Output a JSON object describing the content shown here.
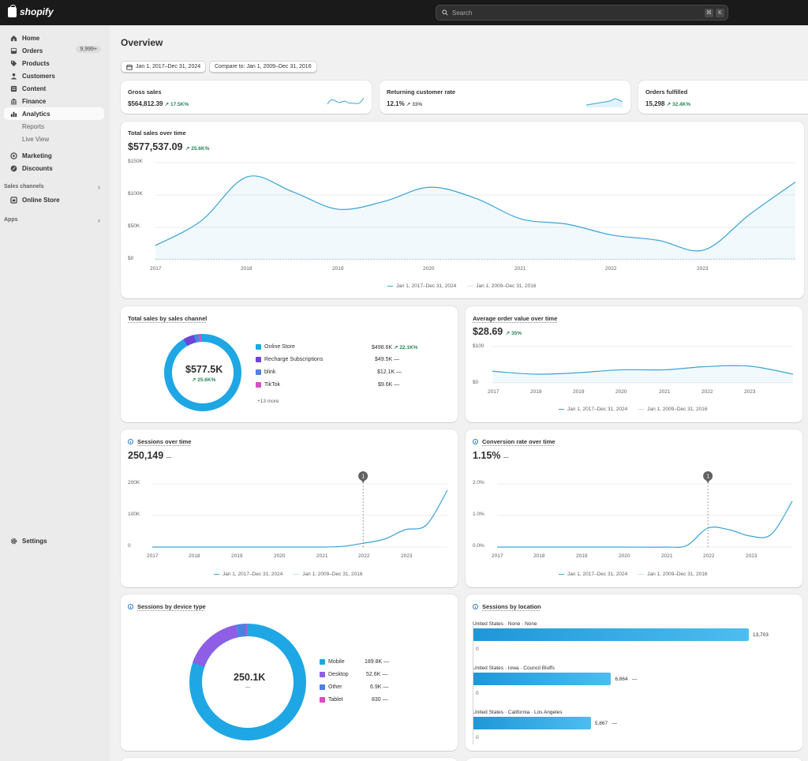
{
  "app": {
    "brand": "shopify"
  },
  "search": {
    "placeholder": "Search",
    "kbd1": "⌘",
    "kbd2": "K"
  },
  "sidebar": {
    "items": [
      {
        "label": "Home"
      },
      {
        "label": "Orders",
        "badge": "9,999+"
      },
      {
        "label": "Products"
      },
      {
        "label": "Customers"
      },
      {
        "label": "Content"
      },
      {
        "label": "Finance"
      },
      {
        "label": "Analytics"
      },
      {
        "label": "Reports"
      },
      {
        "label": "Live View"
      },
      {
        "label": "Marketing"
      },
      {
        "label": "Discounts"
      }
    ],
    "sales_channels_label": "Sales channels",
    "online_store": "Online Store",
    "apps_label": "Apps",
    "settings": "Settings"
  },
  "page": {
    "title": "Overview",
    "date_range": "Jan 1, 2017–Dec 31, 2024",
    "compare": "Compare to: Jan 1, 2009–Dec 31, 2016"
  },
  "kpis": [
    {
      "title": "Gross sales",
      "value": "$564,812.39",
      "delta": "17.5K%",
      "trend": "up"
    },
    {
      "title": "Returning customer rate",
      "value": "12.1%",
      "delta": "33%",
      "trend": "neutral"
    },
    {
      "title": "Orders fulfilled",
      "value": "15,298",
      "delta": "32.4K%",
      "trend": "up"
    }
  ],
  "legend": {
    "current": "Jan 1, 2017–Dec 31, 2024",
    "previous": "Jan 1, 2009–Dec 31, 2016"
  },
  "total_sales": {
    "title": "Total sales over time",
    "value": "$577,537.09",
    "delta": "25.6K%",
    "y_ticks": [
      "$150K",
      "$100K",
      "$50K",
      "$0"
    ],
    "x_ticks": [
      "2017",
      "2018",
      "2019",
      "2020",
      "2021",
      "2022",
      "2023"
    ]
  },
  "sales_channel": {
    "title": "Total sales by sales channel",
    "center_value": "$577.5K",
    "center_delta": "25.6K%",
    "rows": [
      {
        "name": "Online Store",
        "value": "$498.6K",
        "delta": "22.1K%",
        "color": "#1ea7e4"
      },
      {
        "name": "Recharge Subscriptions",
        "value": "$49.5K",
        "delta": "—",
        "color": "#6e44d9"
      },
      {
        "name": "blink",
        "value": "$12.1K",
        "delta": "—",
        "color": "#4f7fe0"
      },
      {
        "name": "TikTok",
        "value": "$9.6K",
        "delta": "—",
        "color": "#d94fc0"
      }
    ],
    "more": "+13 more"
  },
  "aov": {
    "title": "Average order value over time",
    "value": "$28.69",
    "delta": "35%",
    "y_ticks": [
      "$100",
      "$0"
    ],
    "x_ticks": [
      "2017",
      "2018",
      "2019",
      "2020",
      "2021",
      "2022",
      "2023"
    ]
  },
  "sessions": {
    "title": "Sessions over time",
    "value": "250,149",
    "delta": "—",
    "marker": "1",
    "y_ticks": [
      "200K",
      "100K",
      "0"
    ],
    "x_ticks": [
      "2017",
      "2018",
      "2019",
      "2020",
      "2021",
      "2022",
      "2023"
    ]
  },
  "conversion": {
    "title": "Conversion rate over time",
    "value": "1.15%",
    "delta": "—",
    "marker": "1",
    "y_ticks": [
      "2.0%",
      "1.0%",
      "0.0%"
    ],
    "x_ticks": [
      "2017",
      "2018",
      "2019",
      "2020",
      "2021",
      "2022",
      "2023"
    ]
  },
  "device": {
    "title": "Sessions by device type",
    "center_value": "250.1K",
    "center_delta": "—",
    "rows": [
      {
        "name": "Mobile",
        "value": "189.8K",
        "delta": "—",
        "color": "#1ea7e4"
      },
      {
        "name": "Desktop",
        "value": "52.6K",
        "delta": "—",
        "color": "#8f5ee6"
      },
      {
        "name": "Other",
        "value": "6.9K",
        "delta": "—",
        "color": "#4f7fe0"
      },
      {
        "name": "Tablet",
        "value": "830",
        "delta": "—",
        "color": "#d94fc0"
      }
    ]
  },
  "location": {
    "title": "Sessions by location",
    "rows": [
      {
        "label": "United States · None · None",
        "value": "13,703",
        "delta": "",
        "zero": "0"
      },
      {
        "label": "United States · Iowa · Council Bluffs",
        "value": "6,864",
        "delta": "—",
        "zero": "0"
      },
      {
        "label": "United States · California · Los Angeles",
        "value": "5,867",
        "delta": "—",
        "zero": "0"
      }
    ]
  },
  "chart_data": [
    {
      "type": "line",
      "title": "Total sales over time",
      "x": [
        2017,
        2017.5,
        2018,
        2018.5,
        2019,
        2019.5,
        2020,
        2020.5,
        2021,
        2021.5,
        2022,
        2022.5,
        2023,
        2023.5,
        2024
      ],
      "series": [
        {
          "name": "Jan 1, 2017–Dec 31, 2024",
          "values": [
            22000,
            60000,
            128000,
            105000,
            78000,
            90000,
            112000,
            95000,
            63000,
            55000,
            38000,
            30000,
            15000,
            70000,
            120000
          ]
        },
        {
          "name": "Jan 1, 2009–Dec 31, 2016",
          "values": [
            1000,
            1000,
            1000,
            1000,
            1000,
            1000,
            1000,
            1000,
            1000,
            1000,
            1000,
            1000,
            1000,
            1500,
            2000
          ]
        }
      ],
      "ylim": [
        0,
        150000
      ]
    },
    {
      "type": "line",
      "title": "Average order value over time",
      "x": [
        2017,
        2018,
        2019,
        2020,
        2021,
        2022,
        2023,
        2024
      ],
      "series": [
        {
          "name": "Jan 1, 2017–Dec 31, 2024",
          "values": [
            32,
            24,
            28,
            36,
            36,
            45,
            46,
            24
          ]
        }
      ],
      "ylim": [
        0,
        100
      ]
    },
    {
      "type": "line",
      "title": "Sessions over time",
      "x": [
        2017,
        2018,
        2019,
        2020,
        2021,
        2021.5,
        2022,
        2022.5,
        2023,
        2023.5,
        2024
      ],
      "series": [
        {
          "name": "Jan 1, 2017–Dec 31, 2024",
          "values": [
            0,
            0,
            0,
            0,
            0,
            2000,
            12000,
            25000,
            55000,
            70000,
            180000
          ]
        }
      ],
      "ylim": [
        0,
        200000
      ]
    },
    {
      "type": "line",
      "title": "Conversion rate over time",
      "x": [
        2017,
        2018,
        2019,
        2020,
        2021,
        2021.5,
        2022,
        2022.5,
        2023,
        2023.5,
        2024
      ],
      "series": [
        {
          "name": "Jan 1, 2017–Dec 31, 2024",
          "values": [
            0,
            0,
            0,
            0,
            0,
            0.05,
            0.6,
            0.55,
            0.35,
            0.4,
            1.45
          ]
        }
      ],
      "ylim": [
        0,
        2.0
      ]
    },
    {
      "type": "pie",
      "title": "Total sales by sales channel",
      "categories": [
        "Online Store",
        "Recharge Subscriptions",
        "blink",
        "TikTok"
      ],
      "values": [
        498.6,
        49.5,
        12.1,
        9.6
      ]
    },
    {
      "type": "pie",
      "title": "Sessions by device type",
      "categories": [
        "Mobile",
        "Desktop",
        "Other",
        "Tablet"
      ],
      "values": [
        189.8,
        52.6,
        6.9,
        0.83
      ]
    },
    {
      "type": "bar",
      "title": "Sessions by location",
      "categories": [
        "United States · None · None",
        "United States · Iowa · Council Bluffs",
        "United States · California · Los Angeles"
      ],
      "values": [
        13703,
        6864,
        5867
      ]
    }
  ]
}
